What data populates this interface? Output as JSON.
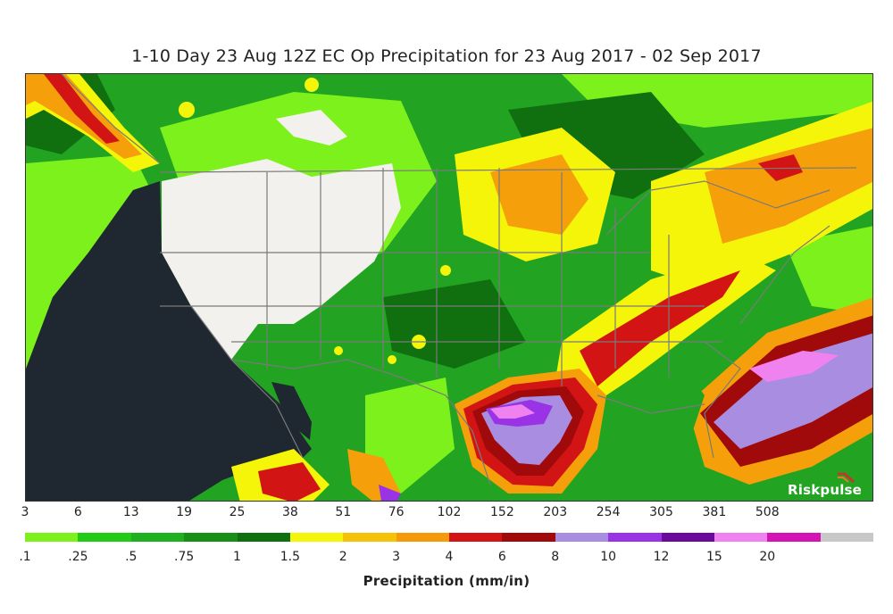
{
  "title": "1-10 Day 23 Aug 12Z EC Op Precipitation for 23 Aug 2017 - 02 Sep 2017",
  "brand": "Riskpulse",
  "colorbar": {
    "label": "Precipitation (mm/in)",
    "mm_ticks": [
      "3",
      "6",
      "13",
      "19",
      "25",
      "38",
      "51",
      "76",
      "102",
      "152",
      "203",
      "254",
      "305",
      "381",
      "508"
    ],
    "in_ticks": [
      ".1",
      ".25",
      ".5",
      ".75",
      "1",
      "1.5",
      "2",
      "3",
      "4",
      "6",
      "8",
      "10",
      "12",
      "15",
      "20"
    ],
    "colors": [
      "#7cf11c",
      "#22cc14",
      "#1eb01e",
      "#189018",
      "#107010",
      "#f5f50a",
      "#f5c20a",
      "#f59a0a",
      "#d21414",
      "#a00a0a",
      "#a98de0",
      "#9a32e6",
      "#6a0a9a",
      "#f082f0",
      "#d214b4",
      "#c8c8c8"
    ]
  },
  "map": {
    "region": "Continental United States, southern Canada and northern Mexico",
    "colors": {
      "ocean": "#1f2730",
      "dry": "#f3f1ee",
      "light_green": "#7cf11c",
      "green": "#22a422",
      "dark_green": "#107010",
      "yellow": "#f5f50a",
      "orange": "#f5a00a",
      "red": "#d21414",
      "dark_red": "#a00a0a",
      "lavender": "#a98de0",
      "purple": "#9a32e6",
      "pink": "#f082f0",
      "borders": "#7a7a7a"
    }
  }
}
